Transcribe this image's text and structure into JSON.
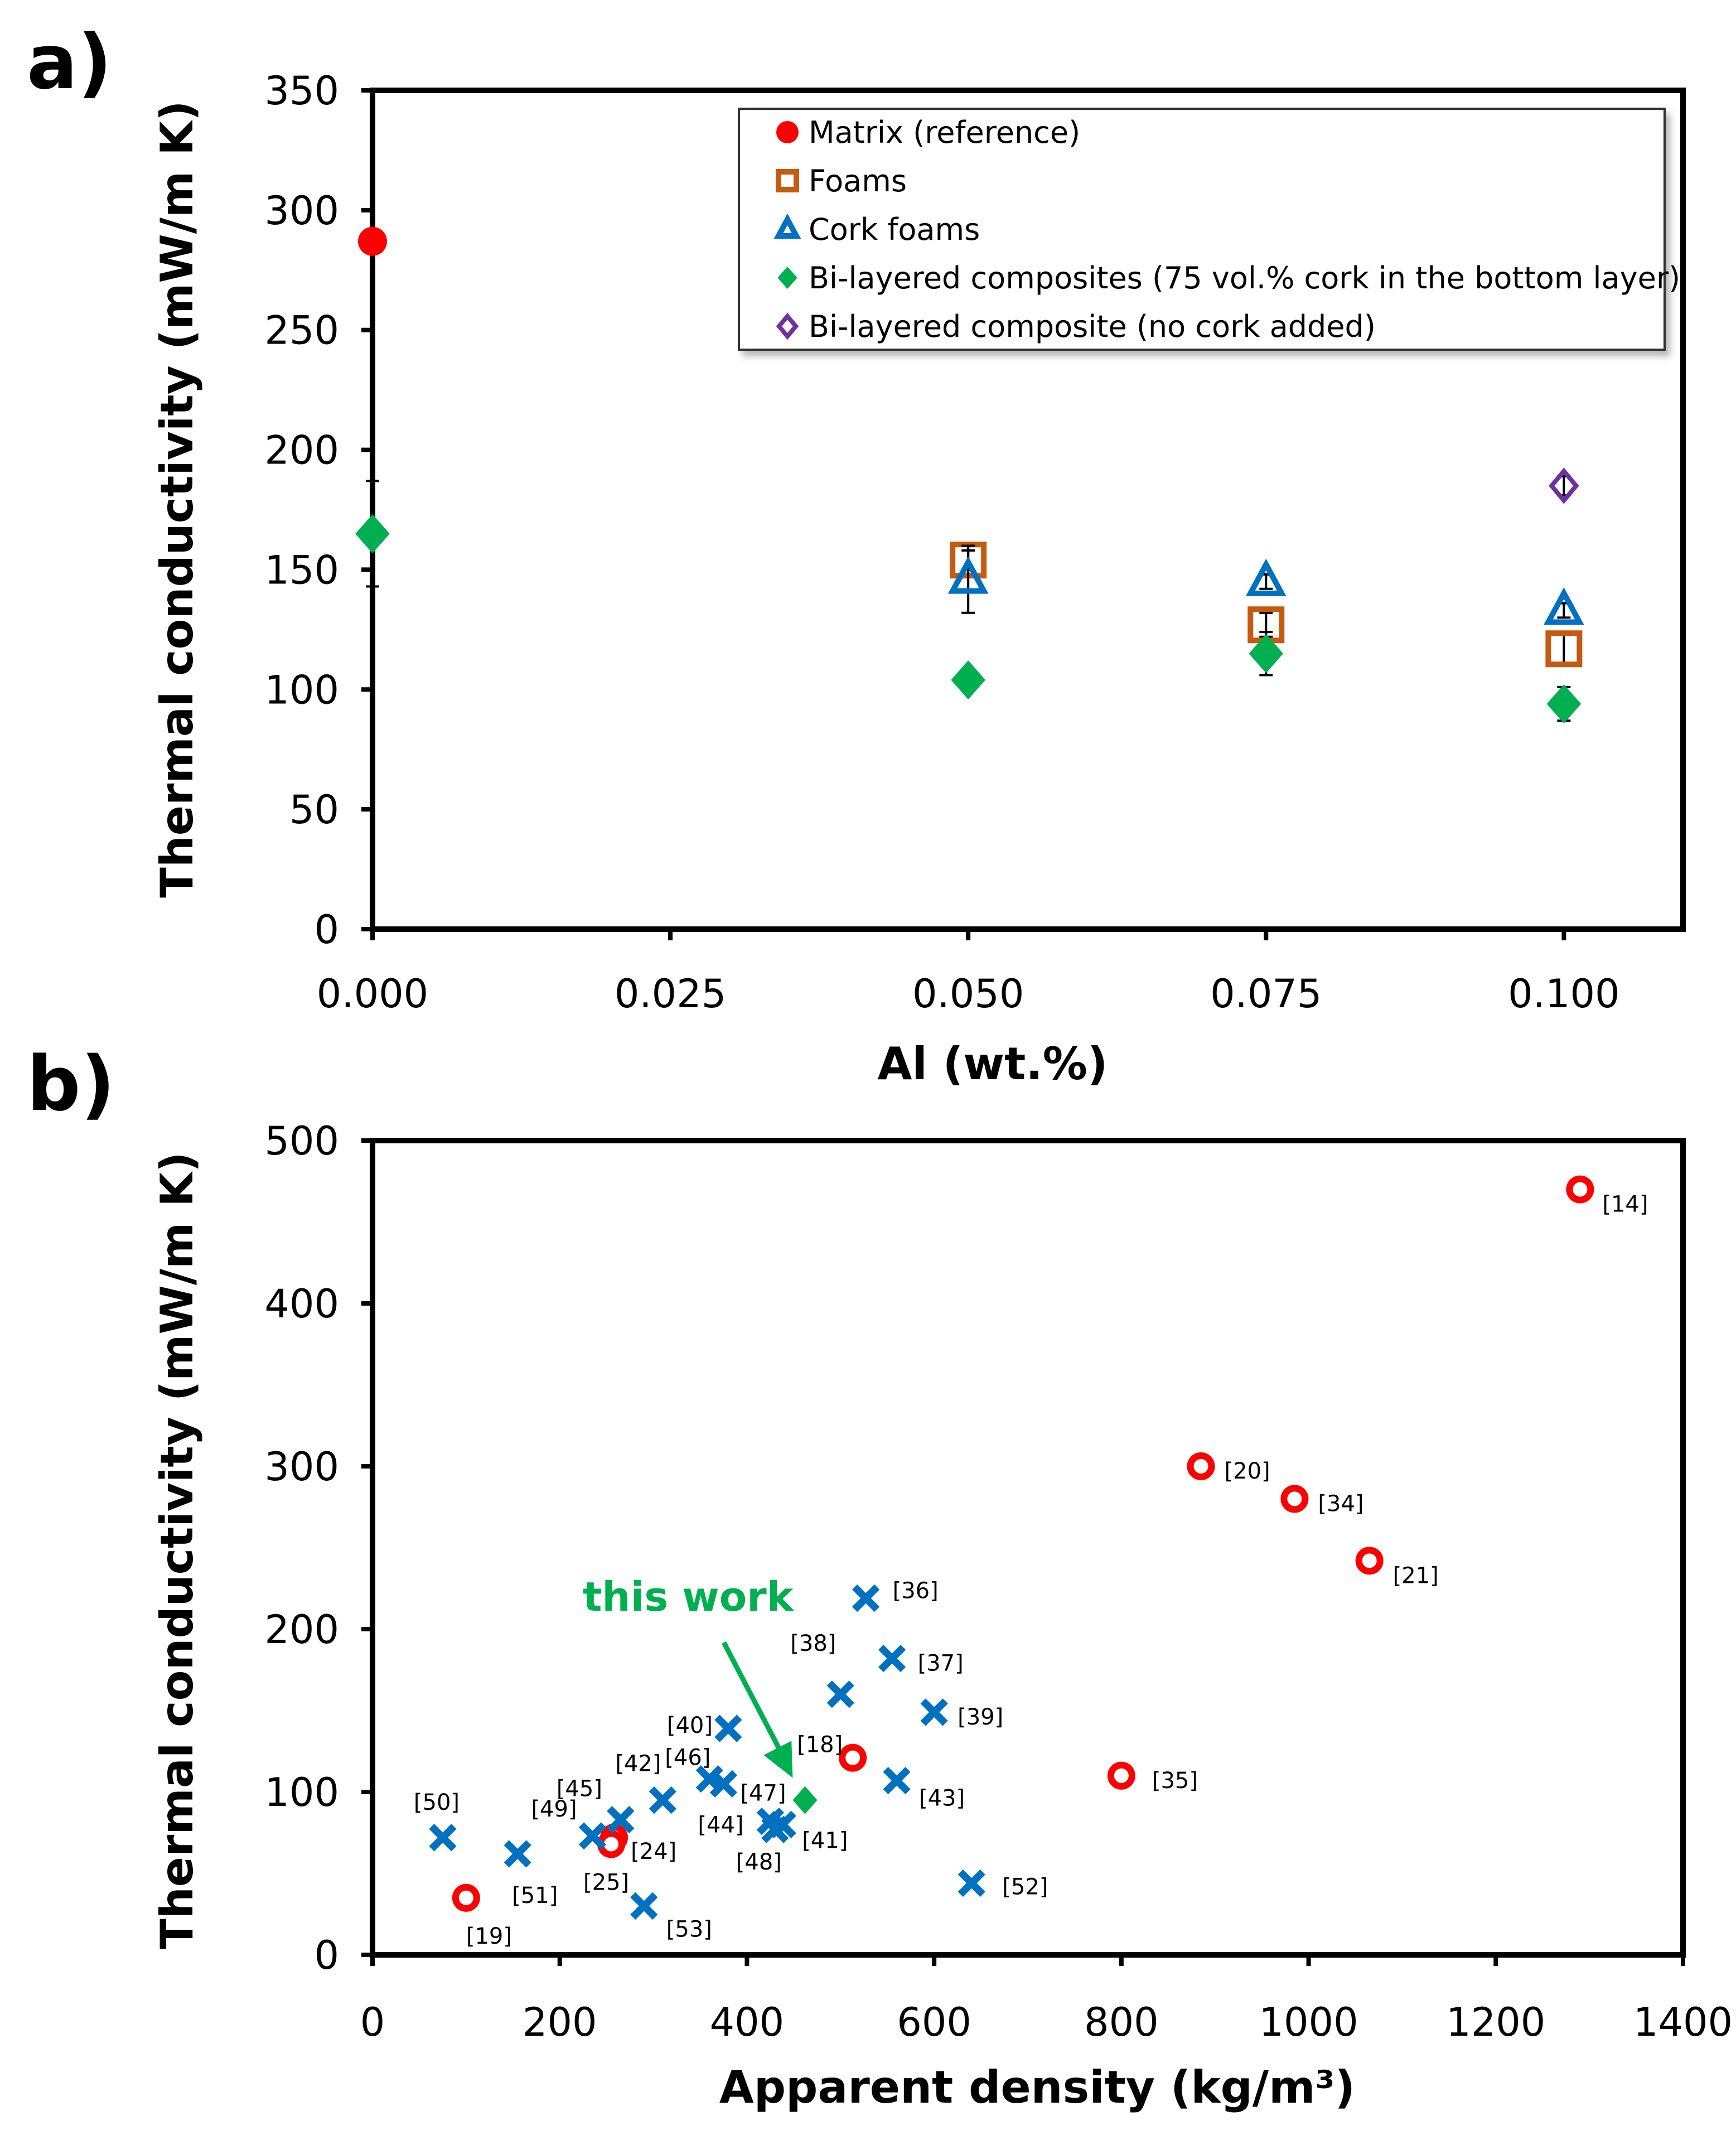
{
  "panels": {
    "a_label": "a)",
    "b_label": "b)"
  },
  "chart_data": [
    {
      "type": "scatter",
      "panel": "a)",
      "xlabel": "Al (wt.%)",
      "ylabel": "Thermal conductivity (mW/m K)",
      "xlim": [
        0,
        0.11
      ],
      "ylim": [
        0,
        350
      ],
      "xticks": [
        "0.000",
        "0.025",
        "0.050",
        "0.075",
        "0.100"
      ],
      "xtick_values": [
        0,
        0.025,
        0.05,
        0.075,
        0.1
      ],
      "yticks": [
        0,
        50,
        100,
        150,
        200,
        250,
        300,
        350
      ],
      "grid": false,
      "legend_position": "top-right",
      "series": [
        {
          "name": "Matrix (reference)",
          "marker": "circle-filled",
          "color": "#ff0000",
          "points": [
            {
              "x": 0.0,
              "y": 287,
              "err": 0
            }
          ]
        },
        {
          "name": "Foams",
          "marker": "square-open",
          "color": "#c55a11",
          "points": [
            {
              "x": 0.05,
              "y": 154,
              "err": 4
            },
            {
              "x": 0.075,
              "y": 127,
              "err": 5
            },
            {
              "x": 0.1,
              "y": 117,
              "err": 7
            }
          ]
        },
        {
          "name": "Cork foams",
          "marker": "triangle-open",
          "color": "#0070c0",
          "points": [
            {
              "x": 0.05,
              "y": 146,
              "err": 14
            },
            {
              "x": 0.075,
              "y": 145,
              "err": 3
            },
            {
              "x": 0.1,
              "y": 133,
              "err": 3
            }
          ]
        },
        {
          "name": "Bi-layered composites (75 vol.% cork in the bottom layer)",
          "marker": "diamond-filled",
          "color": "#00b050",
          "points": [
            {
              "x": 0.0,
              "y": 165,
              "err": 22
            },
            {
              "x": 0.05,
              "y": 104,
              "err": 0
            },
            {
              "x": 0.075,
              "y": 115,
              "err": 9
            },
            {
              "x": 0.1,
              "y": 94,
              "err": 7
            }
          ]
        },
        {
          "name": "Bi-layered composite (no cork added)",
          "marker": "diamond-open",
          "color": "#7030a0",
          "points": [
            {
              "x": 0.1,
              "y": 185,
              "err": 4
            }
          ]
        }
      ]
    },
    {
      "type": "scatter",
      "panel": "b)",
      "xlabel": "Apparent density (kg/m³)",
      "ylabel": "Thermal conductivity (mW/m K)",
      "xlim": [
        0,
        1400
      ],
      "ylim": [
        0,
        500
      ],
      "xticks": [
        0,
        200,
        400,
        600,
        800,
        1000,
        1200,
        1400
      ],
      "yticks": [
        0,
        100,
        200,
        300,
        400,
        500
      ],
      "grid": false,
      "annotation": "this work",
      "series": [
        {
          "marker": "circle-open",
          "color": "#ff0000",
          "points": [
            {
              "label": "[14]",
              "x": 1290,
              "y": 470
            },
            {
              "label": "[20]",
              "x": 885,
              "y": 300
            },
            {
              "label": "[34]",
              "x": 985,
              "y": 280
            },
            {
              "label": "[21]",
              "x": 1065,
              "y": 242
            },
            {
              "label": "[18]",
              "x": 513,
              "y": 121
            },
            {
              "label": "[35]",
              "x": 800,
              "y": 110
            },
            {
              "label": "[24]",
              "x": 258,
              "y": 72
            },
            {
              "label": "[25]",
              "x": 255,
              "y": 68
            },
            {
              "label": "[19]",
              "x": 100,
              "y": 35
            }
          ]
        },
        {
          "marker": "x",
          "color": "#0070c0",
          "points": [
            {
              "label": "[36]",
              "x": 527,
              "y": 219
            },
            {
              "label": "[37]",
              "x": 555,
              "y": 182
            },
            {
              "label": "[38]",
              "x": 500,
              "y": 160
            },
            {
              "label": "[39]",
              "x": 600,
              "y": 149
            },
            {
              "label": "[40]",
              "x": 380,
              "y": 139
            },
            {
              "label": "[42]",
              "x": 310,
              "y": 95
            },
            {
              "label": "[46]",
              "x": 360,
              "y": 108
            },
            {
              "label": "[47]",
              "x": 375,
              "y": 105
            },
            {
              "label": "[43]",
              "x": 560,
              "y": 107
            },
            {
              "label": "[45]",
              "x": 265,
              "y": 83
            },
            {
              "label": "[49]",
              "x": 235,
              "y": 73
            },
            {
              "label": "[44]",
              "x": 425,
              "y": 82
            },
            {
              "label": "[48]",
              "x": 430,
              "y": 77
            },
            {
              "label": "[41]",
              "x": 438,
              "y": 80
            },
            {
              "label": "[50]",
              "x": 75,
              "y": 72
            },
            {
              "label": "[51]",
              "x": 155,
              "y": 62
            },
            {
              "label": "[53]",
              "x": 290,
              "y": 30
            },
            {
              "label": "[52]",
              "x": 640,
              "y": 44
            }
          ]
        },
        {
          "name": "this work",
          "marker": "diamond-filled",
          "color": "#00b050",
          "points": [
            {
              "label": "",
              "x": 462,
              "y": 95
            }
          ]
        }
      ]
    }
  ]
}
